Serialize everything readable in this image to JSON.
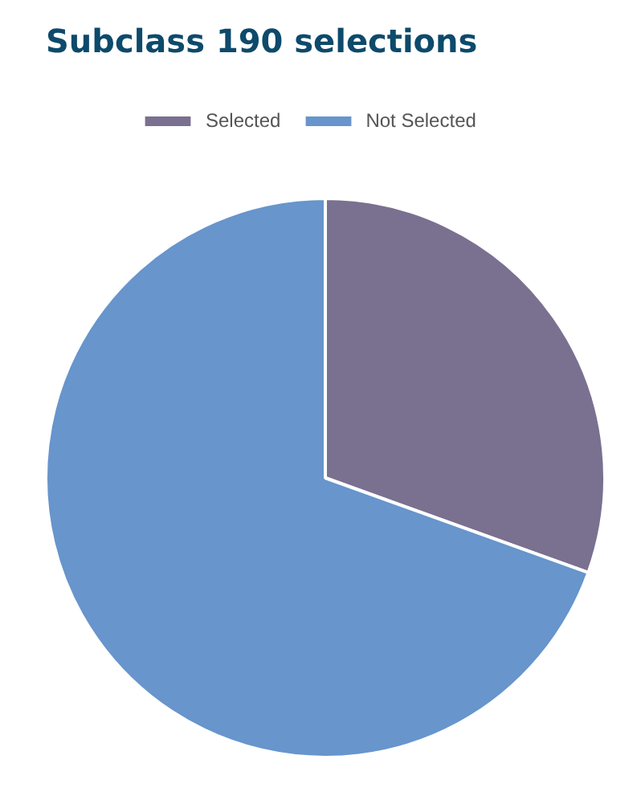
{
  "chart_data": {
    "type": "pie",
    "title": "Subclass 190 selections",
    "categories": [
      "Selected",
      "Not Selected"
    ],
    "values": [
      30.5,
      69.5
    ],
    "colors": [
      "#7a7090",
      "#6795cc"
    ],
    "legend": "top"
  }
}
